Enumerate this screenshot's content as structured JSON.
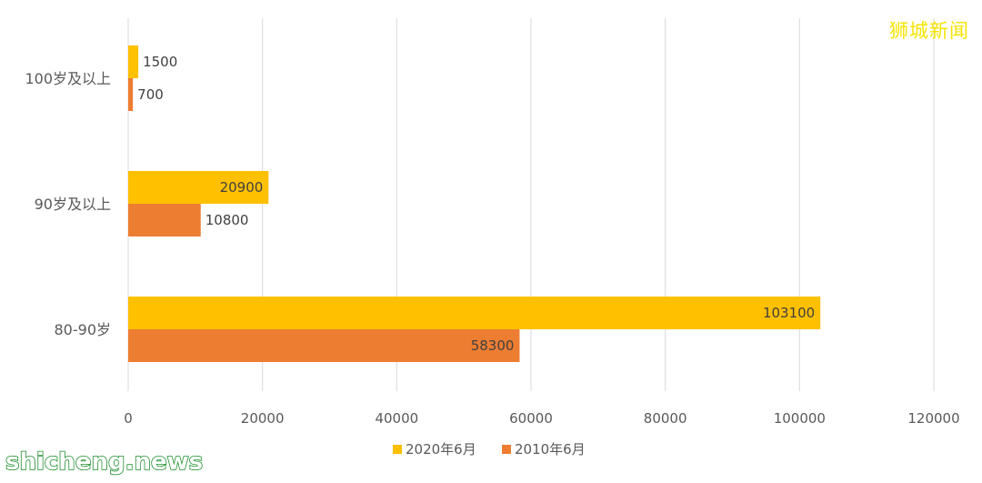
{
  "watermark": {
    "cn": "狮城新闻",
    "en": "shicheng.news"
  },
  "colors": {
    "series_2020": "#FFC000",
    "series_2010": "#ED7D31",
    "grid": "#D9D9D9"
  },
  "chart_data": {
    "type": "bar",
    "orientation": "horizontal",
    "categories": [
      "100岁及以上",
      "90岁及以上",
      "80-90岁"
    ],
    "series": [
      {
        "name": "2020年6月",
        "values": [
          1500,
          20900,
          103100
        ]
      },
      {
        "name": "2010年6月",
        "values": [
          700,
          10800,
          58300
        ]
      }
    ],
    "xlim": [
      0,
      120000
    ],
    "xticks": [
      0,
      20000,
      40000,
      60000,
      80000,
      100000,
      120000
    ],
    "grid": true,
    "legend": "bottom"
  }
}
